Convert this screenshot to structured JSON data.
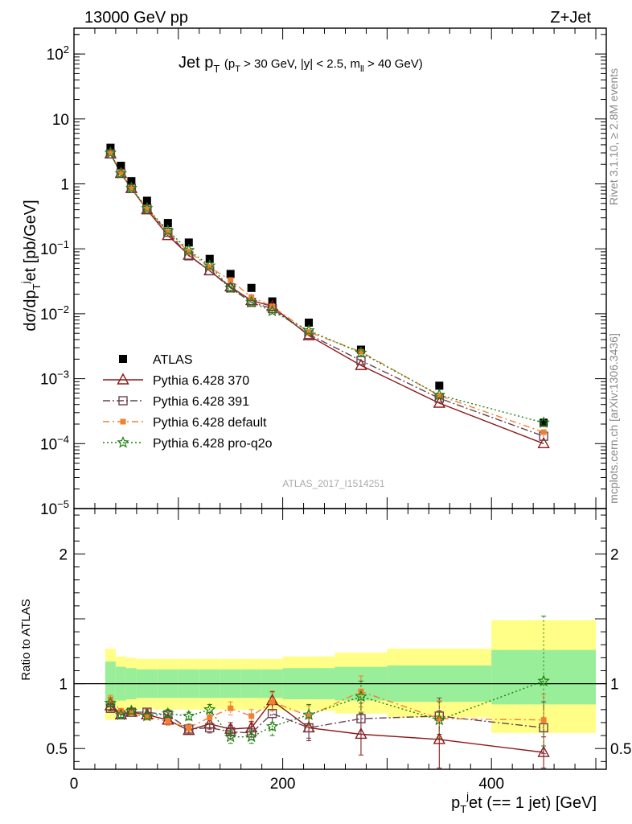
{
  "header": {
    "left": "13000 GeV pp",
    "right": "Z+Jet"
  },
  "side_labels": {
    "rivet": "Rivet 3.1.10, ≥ 2.8M events",
    "mcplots": "mcplots.cern.ch [arXiv:1306.3436]"
  },
  "watermark": "ATLAS_2017_I1514251",
  "plot_title": {
    "main": "Jet p",
    "main_sub": "T",
    "cut_open": "(p",
    "cut_sub": "T",
    "cut_rest": " > 30 GeV, |y| < 2.5, m",
    "cut_sub2": "ll",
    "cut_end": " > 40 GeV)"
  },
  "axis_labels": {
    "y_main_pre": "dσ/dp",
    "y_main_sub": "T",
    "y_main_sup": "j",
    "y_main_post": "et [pb/GeV]",
    "y_ratio": "Ratio to ATLAS",
    "x_pre": "p",
    "x_sub": "T",
    "x_sup": "j",
    "x_post": "et (== 1 jet) [GeV]"
  },
  "colors": {
    "atlas": "#000000",
    "p370": "#8B1A1A",
    "p391": "#6B4050",
    "pdefault": "#F28030",
    "pq2o": "#1E8010",
    "band_inner": "#99ee99",
    "band_outer": "#ffff88"
  },
  "chart_data": {
    "type": "scatter",
    "x_axis": {
      "range": [
        0,
        510
      ],
      "ticks": [
        0,
        200,
        400
      ]
    },
    "y_main": {
      "scale": "log",
      "range": [
        1e-05,
        250
      ],
      "tick_labels": [
        "10^-5",
        "10^-4",
        "10^-3",
        "10^-2",
        "10^-1",
        "1",
        "10",
        "10^2"
      ]
    },
    "y_ratio": {
      "range": [
        0.34,
        2.35
      ],
      "ticks": [
        0.5,
        1,
        2
      ]
    },
    "x": [
      35,
      45,
      55,
      70,
      90,
      110,
      130,
      150,
      170,
      190,
      225,
      275,
      350,
      450
    ],
    "bands": {
      "edges": [
        30,
        40,
        50,
        60,
        80,
        100,
        120,
        140,
        160,
        180,
        200,
        250,
        300,
        400,
        500
      ],
      "inner_lo": [
        0.83,
        0.87,
        0.88,
        0.89,
        0.89,
        0.89,
        0.89,
        0.89,
        0.89,
        0.89,
        0.88,
        0.87,
        0.86,
        0.84
      ],
      "inner_hi": [
        1.17,
        1.13,
        1.12,
        1.11,
        1.11,
        1.11,
        1.11,
        1.11,
        1.11,
        1.11,
        1.12,
        1.13,
        1.14,
        1.26
      ],
      "outer_lo": [
        0.72,
        0.78,
        0.79,
        0.8,
        0.8,
        0.8,
        0.8,
        0.8,
        0.8,
        0.8,
        0.79,
        0.77,
        0.74,
        0.62
      ],
      "outer_hi": [
        1.27,
        1.21,
        1.2,
        1.19,
        1.19,
        1.19,
        1.19,
        1.19,
        1.19,
        1.19,
        1.21,
        1.24,
        1.27,
        1.49
      ]
    },
    "series": [
      {
        "name": "ATLAS",
        "key": "atlas",
        "y": [
          3.6,
          1.9,
          1.1,
          0.55,
          0.25,
          0.125,
          0.07,
          0.041,
          0.025,
          0.0155,
          0.0073,
          0.0028,
          0.00078,
          0.00021
        ],
        "ratio": [
          1,
          1,
          1,
          1,
          1,
          1,
          1,
          1,
          1,
          1,
          1,
          1,
          1,
          1
        ]
      },
      {
        "name": "Pythia 6.428 370",
        "key": "p370",
        "y": [
          2.9,
          1.45,
          0.85,
          0.4,
          0.16,
          0.08,
          0.046,
          0.026,
          0.016,
          0.013,
          0.0046,
          0.0016,
          0.00042,
          0.0001
        ],
        "ratio": [
          0.83,
          0.76,
          0.78,
          0.76,
          0.72,
          0.64,
          0.69,
          0.65,
          0.66,
          0.87,
          0.66,
          0.61,
          0.57,
          0.47
        ],
        "ratio_err": [
          0.03,
          0.02,
          0.02,
          0.02,
          0.03,
          0.03,
          0.04,
          0.05,
          0.05,
          0.07,
          0.1,
          0.16,
          0.22,
          0.12
        ]
      },
      {
        "name": "Pythia 6.428 391",
        "key": "p391",
        "y": [
          2.9,
          1.45,
          0.85,
          0.41,
          0.18,
          0.078,
          0.046,
          0.025,
          0.015,
          0.012,
          0.0048,
          0.0019,
          0.0005,
          0.00013
        ],
        "ratio": [
          0.81,
          0.76,
          0.78,
          0.78,
          0.76,
          0.65,
          0.66,
          0.63,
          0.62,
          0.77,
          0.66,
          0.73,
          0.75,
          0.66
        ],
        "ratio_err": [
          0.02,
          0.02,
          0.02,
          0.02,
          0.02,
          0.03,
          0.04,
          0.05,
          0.05,
          0.07,
          0.08,
          0.12,
          0.14,
          0.2
        ]
      },
      {
        "name": "Pythia 6.428 default",
        "key": "pdefault",
        "y": [
          3.0,
          1.5,
          0.86,
          0.41,
          0.18,
          0.09,
          0.052,
          0.033,
          0.018,
          0.013,
          0.0052,
          0.0026,
          0.00055,
          0.00015
        ],
        "ratio": [
          0.88,
          0.79,
          0.77,
          0.74,
          0.71,
          0.66,
          0.74,
          0.81,
          0.75,
          0.86,
          0.75,
          0.94,
          0.73,
          0.72
        ],
        "ratio_err": [
          0.03,
          0.02,
          0.02,
          0.02,
          0.03,
          0.03,
          0.04,
          0.05,
          0.05,
          0.07,
          0.08,
          0.12,
          0.14,
          0.2
        ]
      },
      {
        "name": "Pythia 6.428 pro-q2o",
        "key": "pq2o",
        "y": [
          3.0,
          1.45,
          0.86,
          0.42,
          0.19,
          0.095,
          0.055,
          0.025,
          0.015,
          0.011,
          0.0055,
          0.0025,
          0.00056,
          0.00021
        ],
        "ratio": [
          0.85,
          0.76,
          0.79,
          0.75,
          0.77,
          0.75,
          0.8,
          0.59,
          0.59,
          0.67,
          0.76,
          0.9,
          0.72,
          1.02
        ],
        "ratio_err": [
          0.03,
          0.02,
          0.02,
          0.02,
          0.03,
          0.03,
          0.04,
          0.05,
          0.05,
          0.07,
          0.08,
          0.12,
          0.14,
          0.5
        ]
      }
    ],
    "legend": {
      "placement": "bottom-left",
      "entries": [
        "ATLAS",
        "Pythia 6.428 370",
        "Pythia 6.428 391",
        "Pythia 6.428 default",
        "Pythia 6.428 pro-q2o"
      ]
    }
  }
}
